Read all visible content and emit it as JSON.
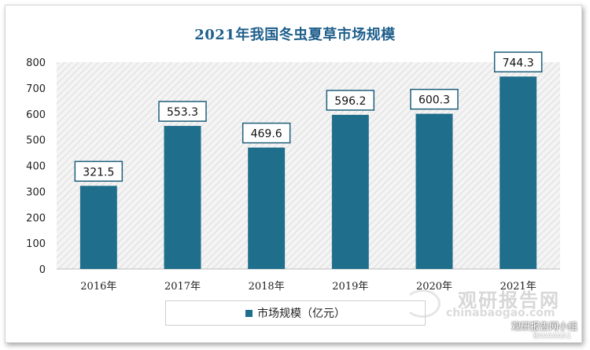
{
  "chart_data": {
    "type": "bar",
    "title": "2021年我国冬虫夏草市场规模",
    "categories": [
      "2016年",
      "2017年",
      "2018年",
      "2019年",
      "2020年",
      "2021年"
    ],
    "series": [
      {
        "name": "市场规模（亿元）",
        "values": [
          321.5,
          553.3,
          469.6,
          596.2,
          600.3,
          744.3
        ]
      }
    ],
    "data_labels": [
      "321.5",
      "553.3",
      "469.6",
      "596.2",
      "600.3",
      "744.3"
    ],
    "ylim": [
      0,
      800
    ],
    "yticks": [
      0,
      100,
      200,
      300,
      400,
      500,
      600,
      700,
      800
    ],
    "xlabel": "",
    "ylabel": "",
    "grid": false,
    "legend_position": "bottom",
    "bar_color": "#1f6e8c",
    "plot_background": "hatched light gray"
  },
  "watermark": {
    "main": "观研报告网",
    "url": "chinabaogao.com"
  },
  "corner_watermark": {
    "line1": "观研报告网小组",
    "line2": "BAAAAAA1"
  }
}
